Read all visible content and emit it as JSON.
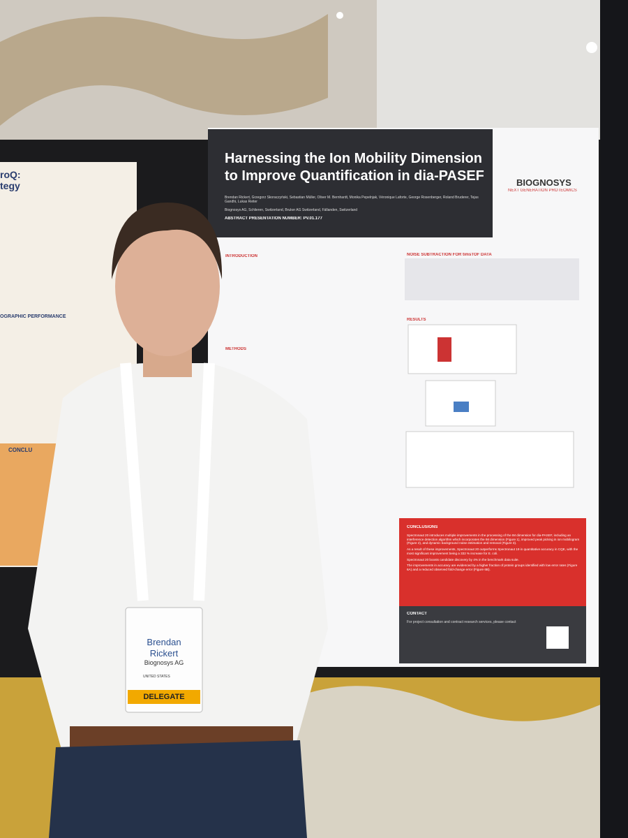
{
  "poster": {
    "title_line1": "Harnessing the Ion Mobility Dimension",
    "title_line2": "to Improve Quantification in dia-PASEF",
    "brand": "BIOGNOSYS",
    "brand_tagline": "NEXT GENERATION PROTEOMICS",
    "authors": "Brendan Rickert, Grzegorz Skoraczyński, Sebastian Müller, Oliver M. Bernhardt, Monika Pepelnjak, Véronique Laforte, George Rosenberger, Roland Bruderer, Tejas Gandhi, Lukas Reiter",
    "affiliation": "Biognosys AG, Schlieren, Switzerland, Bruker AG Switzerland, Fällanden, Switzerland",
    "abstract_number": "ABSTRACT PRESENTATION NUMBER: PV.01.177",
    "introduction_heading": "INTRODUCTION",
    "methods_heading": "METHODS",
    "noise_heading": "NOISE SUBTRACTION FOR timsTOF DATA",
    "results_heading": "RESULTS",
    "conclusions_heading": "CONCLUSIONS",
    "conclusions": [
      "Spectronaut 20 introduces multiple improvements in the processing of the IM dimension for dia-PASEF, including an interference detection algorithm which incorporates the IM dimension (Figure 1), improved peak picking in ion mobilogram (Figure 2), and dynamic background noise estimation and removal (Figure 3).",
      "As a result of these improvements, Spectronaut 20 outperforms Spectronaut 19 in quantitative accuracy in CQE, with the most significant improvement being a 332 % increase for E. coli.",
      "Spectronaut 20 boosts candidate discovery by 4% in the benchmark data suite.",
      "The improvements in accuracy are evidenced by a higher fraction of protein groups identified with low error rates (Figure 6A) and a reduced observed fold-change error (Figure 6B)."
    ],
    "contact_heading": "CONTACT",
    "contact_text": "For project consultation and contract research services, please contact"
  },
  "left_poster": {
    "title_fragment": "roQ:",
    "subtitle_fragment": "tegy",
    "performance_heading": "OGRAPHIC PERFORMANCE",
    "conclusions_fragment": "CONCLU"
  },
  "badge": {
    "first_name": "Brendan",
    "last_name": "Rickert",
    "company": "Biognosys AG",
    "country": "UNITED STATES",
    "role": "DELEGATE"
  }
}
